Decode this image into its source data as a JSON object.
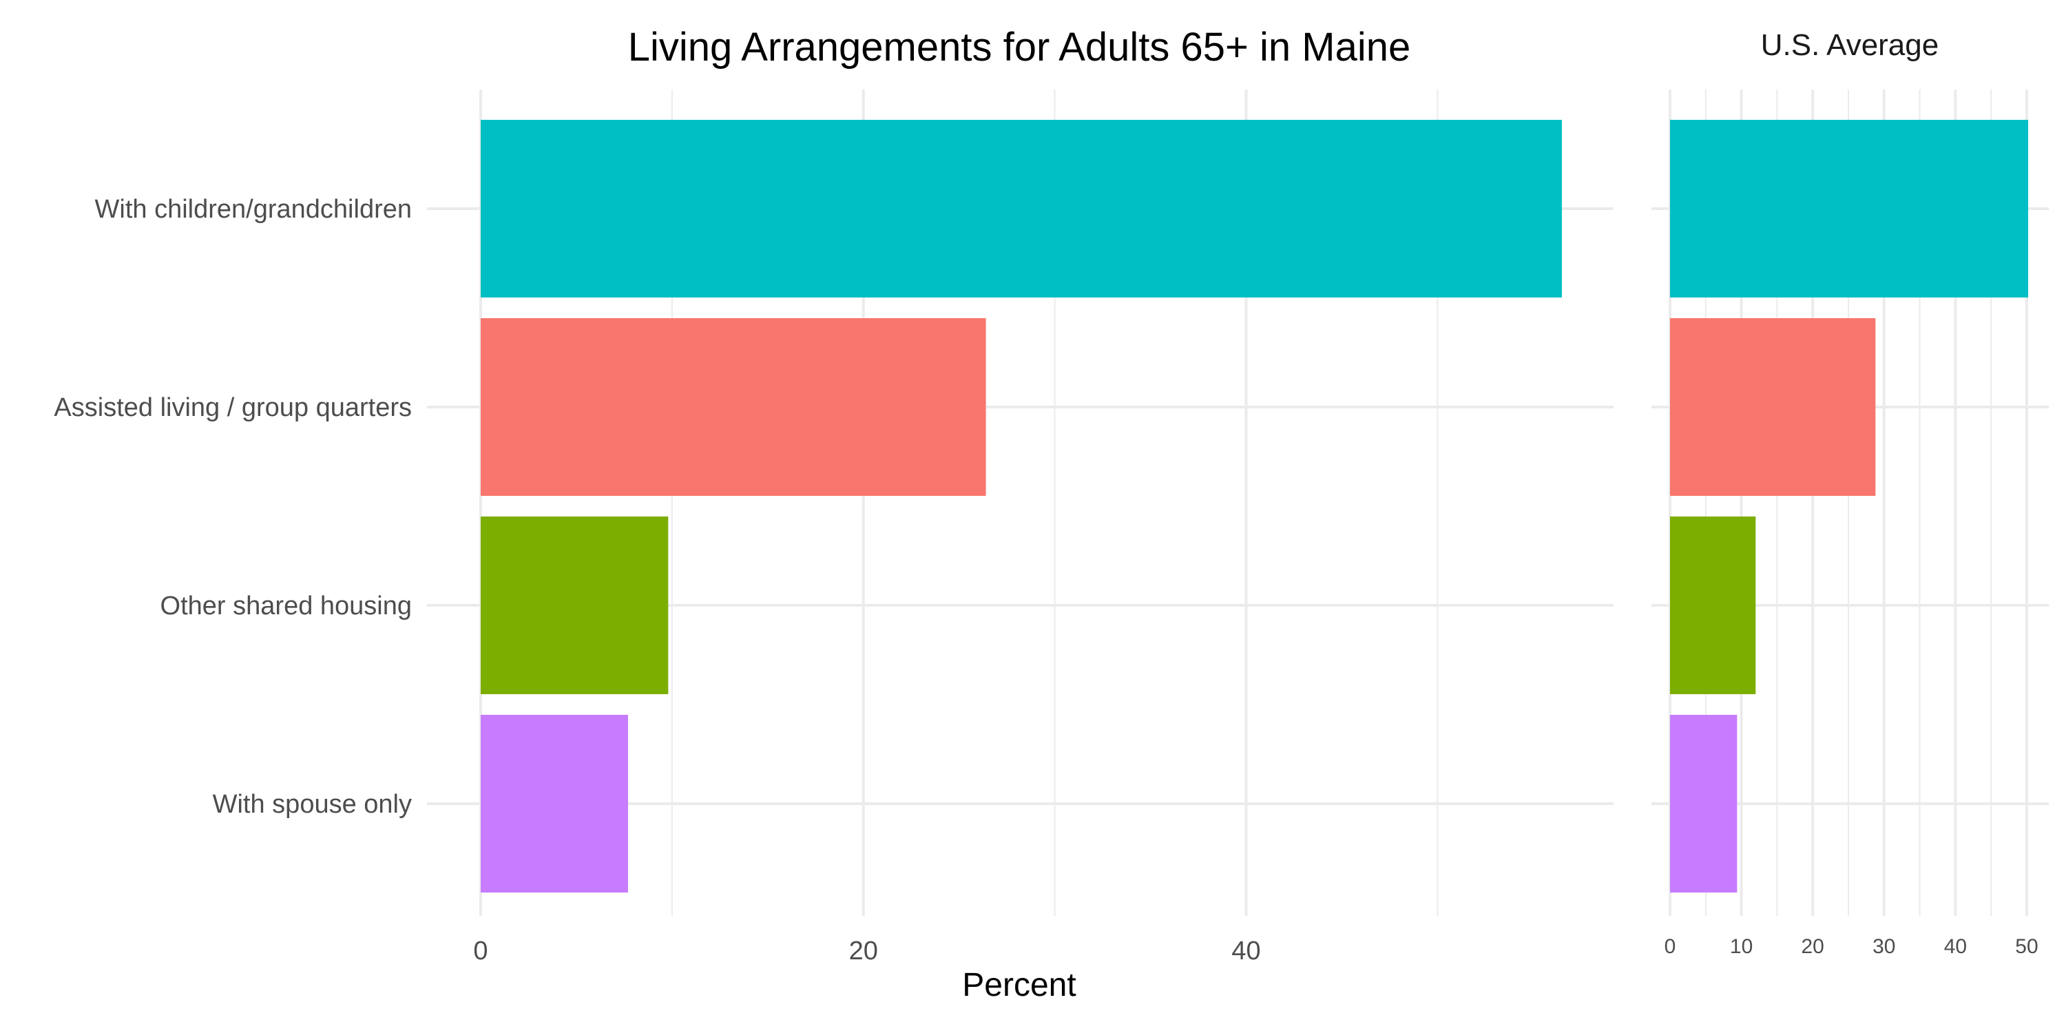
{
  "chart_data": [
    {
      "type": "bar",
      "orientation": "horizontal",
      "title": "Living Arrangements for Adults 65+ in Maine",
      "xlabel": "Percent",
      "ylabel": "",
      "categories": [
        "With children/grandchildren",
        "Assisted living / group quarters",
        "Other shared housing",
        "With spouse only"
      ],
      "values": [
        56.5,
        26.4,
        9.8,
        7.7
      ],
      "colors": [
        "#00BFC4",
        "#F8766D",
        "#7CAE00",
        "#C77CFF"
      ],
      "xlim": [
        0,
        59.2
      ],
      "xticks": [
        0,
        20,
        40
      ],
      "xtick_labels": [
        "0",
        "20",
        "40"
      ],
      "grid": true,
      "legend": "none"
    },
    {
      "type": "bar",
      "orientation": "horizontal",
      "title": "U.S. Average",
      "xlabel": "",
      "ylabel": "",
      "categories": [
        "With children/grandchildren",
        "Assisted living / group quarters",
        "Other shared housing",
        "With spouse only"
      ],
      "values": [
        50.2,
        28.8,
        12.0,
        9.4
      ],
      "colors": [
        "#00BFC4",
        "#F8766D",
        "#7CAE00",
        "#C77CFF"
      ],
      "xlim": [
        0,
        52.8
      ],
      "xticks": [
        0,
        10,
        20,
        30,
        40,
        50
      ],
      "xtick_labels": [
        "0",
        "10",
        "20",
        "30",
        "40",
        "50"
      ],
      "grid": true,
      "legend": "none"
    }
  ]
}
